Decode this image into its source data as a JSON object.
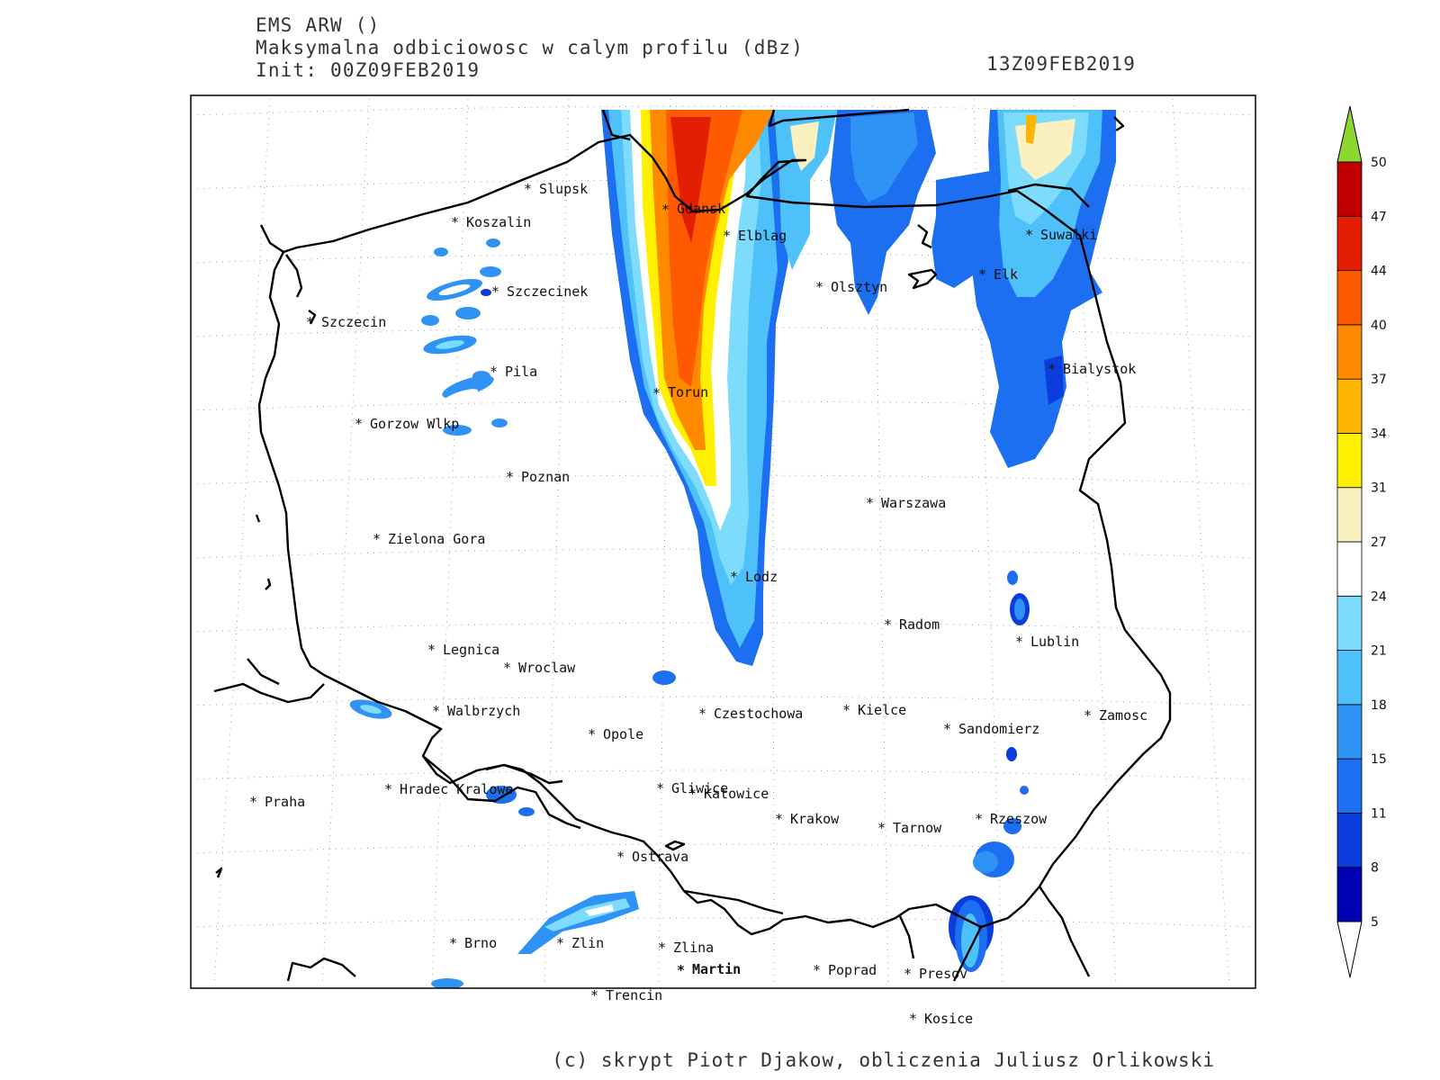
{
  "header": {
    "model": "EMS ARW ()",
    "field": "Maksymalna odbiciowosc w calym profilu (dBz)",
    "init": "Init: 00Z09FEB2019",
    "valid": "13Z09FEB2019"
  },
  "credit": "(c) skrypt Piotr Djakow, obliczenia Juliusz Orlikowski",
  "colorbar": {
    "levels": [
      "5",
      "8",
      "11",
      "15",
      "18",
      "21",
      "24",
      "27",
      "31",
      "34",
      "37",
      "40",
      "44",
      "47",
      "50"
    ],
    "colors": [
      "#0000b4",
      "#0a3ddc",
      "#1c6ff0",
      "#2e93f5",
      "#4ec0fa",
      "#7ddcfc",
      "#ffffff",
      "#faf0c0",
      "#fff000",
      "#ffb400",
      "#ff8a00",
      "#ff5a00",
      "#e41e00",
      "#c00000",
      "#8dd830"
    ],
    "top_arrow_color": "#8dd830"
  },
  "cities": [
    {
      "name": "Slupsk"
    },
    {
      "name": "Koszalin"
    },
    {
      "name": "Gdansk"
    },
    {
      "name": "Elblag"
    },
    {
      "name": "Suwalki"
    },
    {
      "name": "Szczecinek"
    },
    {
      "name": "Olsztyn"
    },
    {
      "name": "Elk"
    },
    {
      "name": "Szczecin"
    },
    {
      "name": "Pila"
    },
    {
      "name": "Bialystok"
    },
    {
      "name": "Torun"
    },
    {
      "name": "Gorzow Wlkp"
    },
    {
      "name": "Poznan"
    },
    {
      "name": "Warszawa"
    },
    {
      "name": "Zielona Gora"
    },
    {
      "name": "Lodz"
    },
    {
      "name": "Radom"
    },
    {
      "name": "Lublin"
    },
    {
      "name": "Legnica"
    },
    {
      "name": "Wroclaw"
    },
    {
      "name": "Walbrzych"
    },
    {
      "name": "Czestochowa"
    },
    {
      "name": "Kielce"
    },
    {
      "name": "Zamosc"
    },
    {
      "name": "Sandomierz"
    },
    {
      "name": "Opole"
    },
    {
      "name": "Praha"
    },
    {
      "name": "Hradec Kralowe"
    },
    {
      "name": "Gliwice"
    },
    {
      "name": "Katowice"
    },
    {
      "name": "Krakow"
    },
    {
      "name": "Tarnow"
    },
    {
      "name": "Rzeszow"
    },
    {
      "name": "Ostrava"
    },
    {
      "name": "Brno"
    },
    {
      "name": "Zlin"
    },
    {
      "name": "Zlina"
    },
    {
      "name": "Martin"
    },
    {
      "name": "Poprad"
    },
    {
      "name": "Presov"
    },
    {
      "name": "Trencin"
    },
    {
      "name": "Kosice"
    }
  ]
}
